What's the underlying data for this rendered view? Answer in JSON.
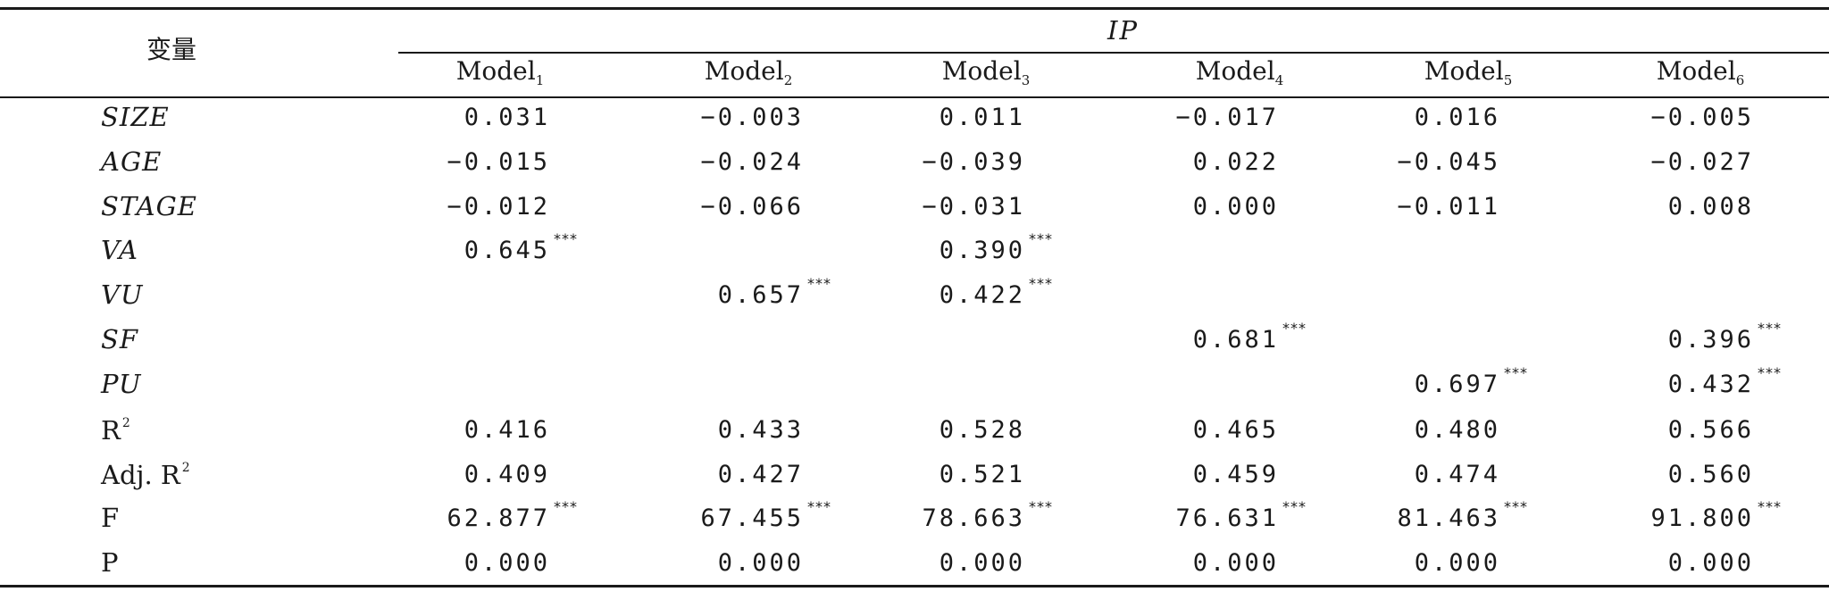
{
  "header": {
    "variable": "变量",
    "dependent": "IP",
    "models": [
      {
        "name": "Model",
        "sub": "1"
      },
      {
        "name": "Model",
        "sub": "2"
      },
      {
        "name": "Model",
        "sub": "3"
      },
      {
        "name": "Model",
        "sub": "4"
      },
      {
        "name": "Model",
        "sub": "5"
      },
      {
        "name": "Model",
        "sub": "6"
      }
    ]
  },
  "significance_marker": "***",
  "rows": [
    {
      "label": "SIZE",
      "italic": true,
      "values": [
        "0.031",
        "−0.003",
        "0.011",
        "−0.017",
        "0.016",
        "−0.005"
      ],
      "sig": [
        false,
        false,
        false,
        false,
        false,
        false
      ]
    },
    {
      "label": "AGE",
      "italic": true,
      "values": [
        "−0.015",
        "−0.024",
        "−0.039",
        "0.022",
        "−0.045",
        "−0.027"
      ],
      "sig": [
        false,
        false,
        false,
        false,
        false,
        false
      ]
    },
    {
      "label": "STAGE",
      "italic": true,
      "values": [
        "−0.012",
        "−0.066",
        "−0.031",
        "0.000",
        "−0.011",
        "0.008"
      ],
      "sig": [
        false,
        false,
        false,
        false,
        false,
        false
      ]
    },
    {
      "label": "VA",
      "italic": true,
      "values": [
        "0.645",
        "",
        "0.390",
        "",
        "",
        ""
      ],
      "sig": [
        true,
        false,
        true,
        false,
        false,
        false
      ]
    },
    {
      "label": "VU",
      "italic": true,
      "values": [
        "",
        "0.657",
        "0.422",
        "",
        "",
        ""
      ],
      "sig": [
        false,
        true,
        true,
        false,
        false,
        false
      ]
    },
    {
      "label": "SF",
      "italic": true,
      "values": [
        "",
        "",
        "",
        "0.681",
        "",
        "0.396"
      ],
      "sig": [
        false,
        false,
        false,
        true,
        false,
        true
      ]
    },
    {
      "label": "PU",
      "italic": true,
      "values": [
        "",
        "",
        "",
        "",
        "0.697",
        "0.432"
      ],
      "sig": [
        false,
        false,
        false,
        false,
        true,
        true
      ]
    },
    {
      "label": "R",
      "label_sup": "2",
      "italic": false,
      "values": [
        "0.416",
        "0.433",
        "0.528",
        "0.465",
        "0.480",
        "0.566"
      ],
      "sig": [
        false,
        false,
        false,
        false,
        false,
        false
      ]
    },
    {
      "label": "Adj. R",
      "label_sup": "2",
      "italic": false,
      "values": [
        "0.409",
        "0.427",
        "0.521",
        "0.459",
        "0.474",
        "0.560"
      ],
      "sig": [
        false,
        false,
        false,
        false,
        false,
        false
      ]
    },
    {
      "label": "F",
      "italic": false,
      "values": [
        "62.877",
        "67.455",
        "78.663",
        "76.631",
        "81.463",
        "91.800"
      ],
      "sig": [
        true,
        true,
        true,
        true,
        true,
        true
      ]
    },
    {
      "label": "P",
      "italic": false,
      "values": [
        "0.000",
        "0.000",
        "0.000",
        "0.000",
        "0.000",
        "0.000"
      ],
      "sig": [
        false,
        false,
        false,
        false,
        false,
        false
      ]
    }
  ]
}
